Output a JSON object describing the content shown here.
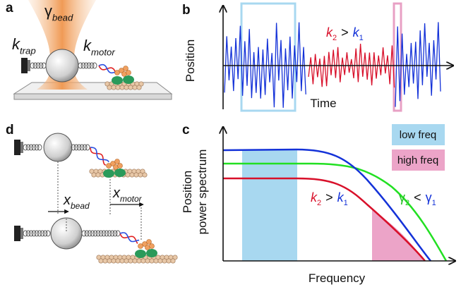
{
  "panels": {
    "a": {
      "label": "a",
      "k_trap": {
        "main": "k",
        "sub": "trap"
      },
      "gamma_bead": {
        "main": "γ",
        "sub": "bead"
      },
      "k_motor": {
        "main": "k",
        "sub": "motor"
      }
    },
    "b": {
      "label": "b",
      "y_axis": "Position",
      "x_axis": "Time",
      "relation": {
        "left": {
          "main": "k",
          "sub": "2"
        },
        "op": ">",
        "right": {
          "main": "k",
          "sub": "1"
        }
      }
    },
    "c": {
      "label": "c",
      "y_axis": [
        "Position",
        "power spectrum"
      ],
      "x_axis": "Frequency",
      "legend": [
        "low freq",
        "high freq"
      ],
      "relation_k": {
        "left": {
          "main": "k",
          "sub": "2"
        },
        "op": ">",
        "right": {
          "main": "k",
          "sub": "1"
        }
      },
      "relation_gamma": {
        "left": {
          "main": "γ",
          "sub": "2"
        },
        "op": "<",
        "right": {
          "main": "γ",
          "sub": "1"
        }
      }
    },
    "d": {
      "label": "d",
      "x_bead": {
        "main": "x",
        "sub": "bead"
      },
      "x_motor": {
        "main": "x",
        "sub": "motor"
      }
    }
  }
}
